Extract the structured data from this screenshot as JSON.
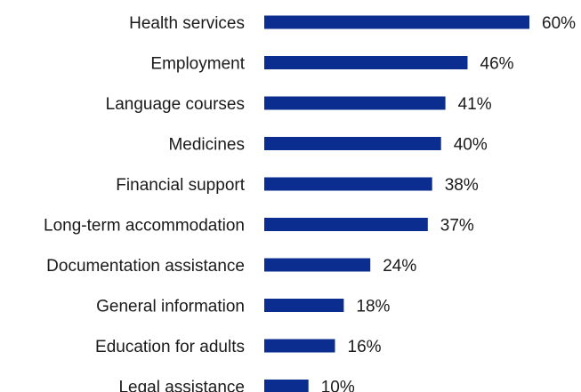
{
  "chart_data": {
    "type": "bar",
    "orientation": "horizontal",
    "categories": [
      "Health services",
      "Employment",
      "Language courses",
      "Medicines",
      "Financial support",
      "Long-term accommodation",
      "Documentation assistance",
      "General information",
      "Education for adults",
      "Legal assistance"
    ],
    "values": [
      60,
      46,
      41,
      40,
      38,
      37,
      24,
      18,
      16,
      10
    ],
    "value_labels": [
      "60%",
      "46%",
      "41%",
      "40%",
      "38%",
      "37%",
      "24%",
      "18%",
      "16%",
      "10%"
    ],
    "title": "",
    "xlabel": "",
    "ylabel": "",
    "xlim": [
      0,
      60
    ],
    "grid": false,
    "legend": "none",
    "bar_color": "#0a2d8f"
  }
}
